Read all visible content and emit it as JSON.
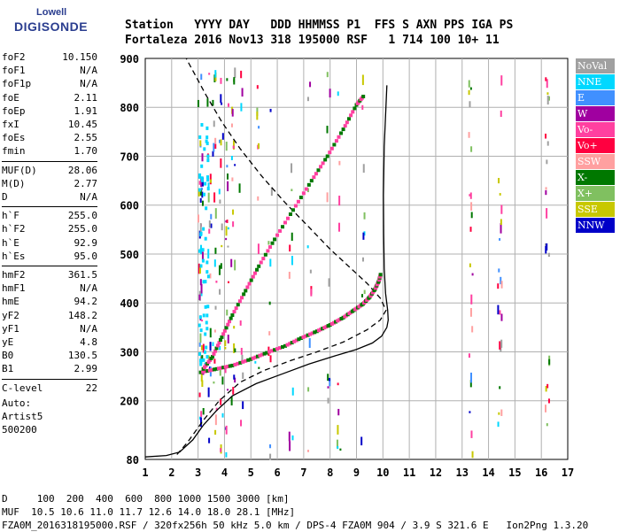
{
  "logo": {
    "line1": "Lowell",
    "line2": "DIGISONDE"
  },
  "header": {
    "labels": "Station   YYYY DAY   DDD HHMMSS P1  FFS S AXN PPS IGA PS",
    "values": "Fortaleza 2016 Nov13 318 195000 RSF   1 714 100 10+ 11"
  },
  "params": [
    {
      "k": "foF2",
      "v": "10.150"
    },
    {
      "k": "foF1",
      "v": "N/A"
    },
    {
      "k": "foF1p",
      "v": "N/A"
    },
    {
      "k": "foE",
      "v": "2.11"
    },
    {
      "k": "foEp",
      "v": "1.91"
    },
    {
      "k": "fxI",
      "v": "10.45"
    },
    {
      "k": "foEs",
      "v": "2.55"
    },
    {
      "k": "fmin",
      "v": "1.70"
    },
    {
      "k": "MUF(D)",
      "v": "28.06"
    },
    {
      "k": "M(D)",
      "v": "2.77"
    },
    {
      "k": "D",
      "v": "N/A"
    },
    {
      "k": "h`F",
      "v": "255.0"
    },
    {
      "k": "h`F2",
      "v": "255.0"
    },
    {
      "k": "h`E",
      "v": "92.9"
    },
    {
      "k": "h`Es",
      "v": "95.0"
    },
    {
      "k": "hmF2",
      "v": "361.5"
    },
    {
      "k": "hmF1",
      "v": "N/A"
    },
    {
      "k": "hmE",
      "v": "94.2"
    },
    {
      "k": "yF2",
      "v": "148.2"
    },
    {
      "k": "yF1",
      "v": "N/A"
    },
    {
      "k": "yE",
      "v": "4.8"
    },
    {
      "k": "B0",
      "v": "130.5"
    },
    {
      "k": "B1",
      "v": "2.99"
    },
    {
      "k": "C-level",
      "v": "22"
    }
  ],
  "auto": {
    "line1": "Auto:",
    "line2": "Artist5",
    "line3": "500200"
  },
  "legend": [
    {
      "label": "NoVal",
      "color": "#a0a0a0"
    },
    {
      "label": "NNE",
      "color": "#00d8ff"
    },
    {
      "label": "E",
      "color": "#4090ff"
    },
    {
      "label": "W",
      "color": "#a000a0"
    },
    {
      "label": "Vo-",
      "color": "#ff40a0"
    },
    {
      "label": "Vo+",
      "color": "#ff0040"
    },
    {
      "label": "SSW",
      "color": "#ffa0a0"
    },
    {
      "label": "X-",
      "color": "#007800"
    },
    {
      "label": "X+",
      "color": "#80c060"
    },
    {
      "label": "SSE",
      "color": "#c8c800"
    },
    {
      "label": "NNW",
      "color": "#0000c8"
    }
  ],
  "footer": {
    "line1": "D     100  200  400  600  800 1000 1500 3000 [km]",
    "line2": "MUF  10.5 10.6 11.0 11.7 12.6 14.0 18.0 28.1 [MHz]",
    "line3": "FZA0M_2016318195000.RSF / 320fx256h 50 kHz 5.0 km / DPS-4 FZA0M 904 / 3.9 S 321.6 E   Ion2Png 1.3.20"
  },
  "chart_data": {
    "type": "scatter",
    "xlim": [
      1,
      17
    ],
    "ylim": [
      80,
      900
    ],
    "x_ticks": [
      1,
      2,
      3,
      4,
      5,
      6,
      7,
      8,
      9,
      10,
      11,
      12,
      13,
      14,
      15,
      16,
      17
    ],
    "y_ticks": [
      80,
      200,
      300,
      400,
      500,
      600,
      700,
      800,
      900
    ],
    "grid": true,
    "series": [
      {
        "color": "#000000",
        "style": "solid",
        "points": [
          [
            1.0,
            85
          ],
          [
            1.8,
            88
          ],
          [
            2.3,
            95
          ],
          [
            2.8,
            120
          ],
          [
            3.2,
            150
          ],
          [
            3.7,
            180
          ],
          [
            4.3,
            210
          ],
          [
            5.2,
            235
          ],
          [
            6.2,
            255
          ],
          [
            7.2,
            275
          ],
          [
            8.2,
            292
          ],
          [
            9.0,
            305
          ],
          [
            9.6,
            318
          ],
          [
            9.95,
            332
          ],
          [
            10.15,
            350
          ],
          [
            10.2,
            365
          ],
          [
            10.18,
            385
          ],
          [
            10.1,
            420
          ],
          [
            10.05,
            470
          ],
          [
            10.03,
            540
          ],
          [
            10.02,
            620
          ],
          [
            10.05,
            720
          ],
          [
            10.15,
            845
          ]
        ]
      },
      {
        "color": "#000000",
        "style": "dashed",
        "points": [
          [
            2.2,
            90
          ],
          [
            2.6,
            115
          ],
          [
            3.2,
            160
          ],
          [
            3.8,
            200
          ],
          [
            4.6,
            238
          ],
          [
            5.5,
            262
          ],
          [
            6.5,
            282
          ],
          [
            7.5,
            300
          ],
          [
            8.5,
            320
          ],
          [
            9.4,
            345
          ],
          [
            9.9,
            365
          ],
          [
            10.12,
            385
          ],
          [
            9.9,
            410
          ],
          [
            9.4,
            440
          ],
          [
            8.8,
            470
          ],
          [
            8.0,
            510
          ],
          [
            7.2,
            555
          ],
          [
            6.3,
            605
          ],
          [
            5.4,
            660
          ],
          [
            4.6,
            715
          ],
          [
            3.9,
            770
          ],
          [
            3.3,
            825
          ],
          [
            2.8,
            875
          ],
          [
            2.55,
            900
          ]
        ]
      },
      {
        "color": "#ff40a0",
        "style": "trace",
        "points": [
          [
            3.1,
            258
          ],
          [
            3.7,
            265
          ],
          [
            4.3,
            272
          ],
          [
            5.0,
            285
          ],
          [
            5.6,
            298
          ],
          [
            6.3,
            312
          ],
          [
            6.9,
            328
          ],
          [
            7.5,
            342
          ],
          [
            8.0,
            355
          ],
          [
            8.5,
            370
          ],
          [
            8.9,
            385
          ],
          [
            9.25,
            398
          ],
          [
            9.5,
            412
          ],
          [
            9.7,
            428
          ],
          [
            9.85,
            445
          ],
          [
            9.92,
            460
          ]
        ]
      },
      {
        "color": "#ff40a0",
        "style": "trace",
        "points": [
          [
            3.2,
            265
          ],
          [
            3.55,
            290
          ],
          [
            3.9,
            330
          ],
          [
            4.3,
            375
          ],
          [
            4.8,
            425
          ],
          [
            5.3,
            475
          ],
          [
            5.9,
            530
          ],
          [
            6.6,
            590
          ],
          [
            7.3,
            650
          ],
          [
            7.9,
            700
          ],
          [
            8.5,
            755
          ],
          [
            9.0,
            805
          ],
          [
            9.3,
            825
          ]
        ]
      }
    ]
  }
}
